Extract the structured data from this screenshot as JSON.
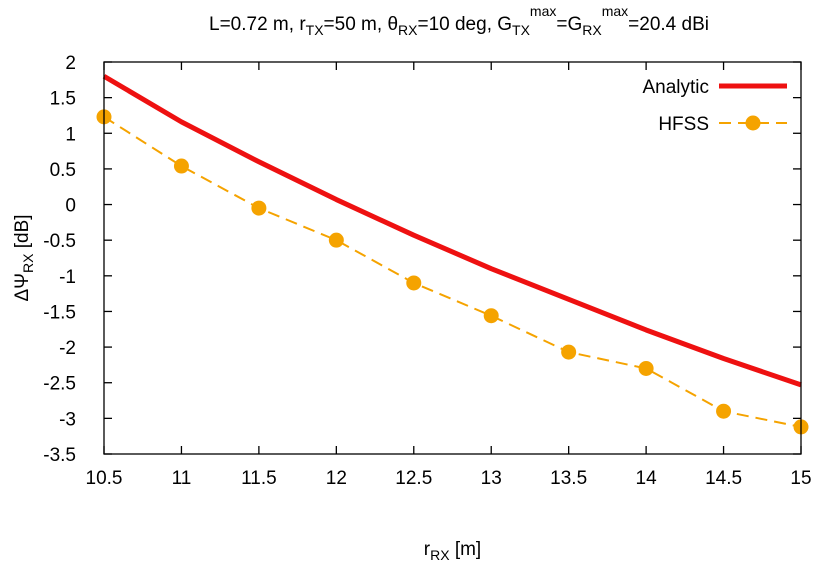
{
  "chart_data": {
    "type": "line",
    "title": {
      "parts": [
        {
          "text": "L=0.72 m, r",
          "style": "normal"
        },
        {
          "text": "TX",
          "style": "sub"
        },
        {
          "text": "=50 m, ",
          "style": "normal"
        },
        {
          "text": "θ",
          "style": "normal"
        },
        {
          "text": "RX",
          "style": "sub"
        },
        {
          "text": "=10 deg, G",
          "style": "normal"
        },
        {
          "text": "TX",
          "style": "sub"
        },
        {
          "text": "max",
          "style": "sup"
        },
        {
          "text": "=G",
          "style": "normal"
        },
        {
          "text": "RX",
          "style": "sub"
        },
        {
          "text": "max",
          "style": "sup"
        },
        {
          "text": "=20.4 dBi",
          "style": "normal"
        }
      ]
    },
    "xlabel": {
      "parts": [
        {
          "text": "r",
          "style": "normal"
        },
        {
          "text": "RX",
          "style": "sub"
        },
        {
          "text": " [m]",
          "style": "normal"
        }
      ]
    },
    "ylabel": {
      "parts": [
        {
          "text": "ΔΨ",
          "style": "normal"
        },
        {
          "text": "RX",
          "style": "sub"
        },
        {
          "text": " [dB]",
          "style": "normal"
        }
      ]
    },
    "xlim": [
      10.5,
      15
    ],
    "ylim": [
      -3.5,
      2
    ],
    "xticks": [
      {
        "value": 10.5,
        "label": "10.5"
      },
      {
        "value": 11,
        "label": "11"
      },
      {
        "value": 11.5,
        "label": "11.5"
      },
      {
        "value": 12,
        "label": "12"
      },
      {
        "value": 12.5,
        "label": "12.5"
      },
      {
        "value": 13,
        "label": "13"
      },
      {
        "value": 13.5,
        "label": "13.5"
      },
      {
        "value": 14,
        "label": "14"
      },
      {
        "value": 14.5,
        "label": "14.5"
      },
      {
        "value": 15,
        "label": "15"
      }
    ],
    "yticks": [
      {
        "value": 2,
        "label": "2"
      },
      {
        "value": 1.5,
        "label": "1.5"
      },
      {
        "value": 1,
        "label": "1"
      },
      {
        "value": 0.5,
        "label": "0.5"
      },
      {
        "value": 0,
        "label": "0"
      },
      {
        "value": -0.5,
        "label": "-0.5"
      },
      {
        "value": -1,
        "label": "-1"
      },
      {
        "value": -1.5,
        "label": "-1.5"
      },
      {
        "value": -2,
        "label": "-2"
      },
      {
        "value": -2.5,
        "label": "-2.5"
      },
      {
        "value": -3,
        "label": "-3"
      },
      {
        "value": -3.5,
        "label": "-3.5"
      }
    ],
    "grid": false,
    "legend_position": "top-right",
    "series": [
      {
        "name": "Analytic",
        "color": "#ee1111",
        "style": "solid",
        "marker": "none",
        "x": [
          10.5,
          11,
          11.5,
          12,
          12.5,
          13,
          13.5,
          14,
          14.5,
          15
        ],
        "y": [
          1.8,
          1.16,
          0.6,
          0.07,
          -0.43,
          -0.9,
          -1.33,
          -1.76,
          -2.16,
          -2.53
        ]
      },
      {
        "name": "HFSS",
        "color": "#f5a300",
        "style": "dashed",
        "marker": "circle",
        "x": [
          10.5,
          11,
          11.5,
          12,
          12.5,
          13,
          13.5,
          14,
          14.5,
          15
        ],
        "y": [
          1.23,
          0.54,
          -0.05,
          -0.5,
          -1.1,
          -1.56,
          -2.07,
          -2.3,
          -2.9,
          -3.12
        ]
      }
    ]
  }
}
